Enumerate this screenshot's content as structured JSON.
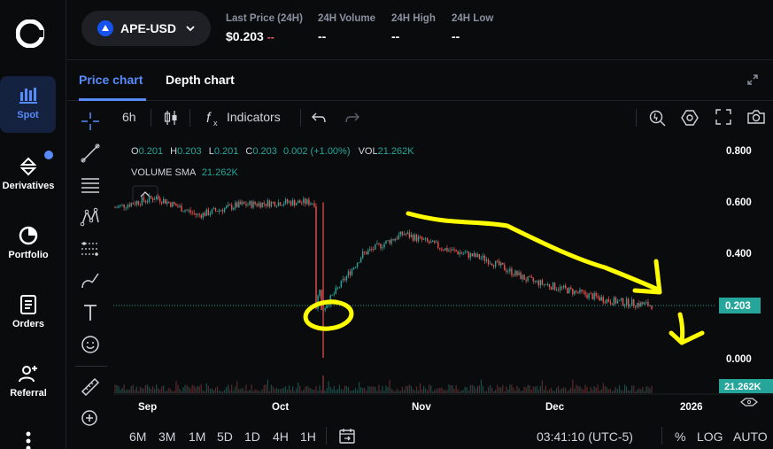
{
  "nav": {
    "items": [
      {
        "label": "Spot",
        "icon": "bar-chart-icon"
      },
      {
        "label": "Derivatives",
        "icon": "derivatives-icon"
      },
      {
        "label": "Portfolio",
        "icon": "pie-chart-icon"
      },
      {
        "label": "Orders",
        "icon": "document-icon"
      },
      {
        "label": "Referral",
        "icon": "add-user-icon"
      }
    ]
  },
  "header": {
    "pair": "APE-USD",
    "last_price_label": "Last Price (24H)",
    "last_price_value": "$0.203",
    "last_price_change": "--",
    "volume_label": "24H Volume",
    "volume_value": "--",
    "high_label": "24H High",
    "high_value": "--",
    "low_label": "24H Low",
    "low_value": "--"
  },
  "tabs": {
    "price": "Price chart",
    "depth": "Depth chart"
  },
  "toolbar": {
    "interval": "6h",
    "indicators": "Indicators"
  },
  "legend": {
    "o_label": "O",
    "o_value": "0.201",
    "h_label": "H",
    "h_value": "0.203",
    "l_label": "L",
    "l_value": "0.201",
    "c_label": "C",
    "c_value": "0.203",
    "change": "0.002 (+1.00%)",
    "vol_label": "VOL",
    "vol_value": "21.262K",
    "sma_label": "VOLUME SMA",
    "sma_value": "21.262K"
  },
  "price_axis": {
    "ticks": [
      "0.800",
      "0.600",
      "0.400",
      "0.000"
    ],
    "current": "0.203",
    "volume_badge": "21.262K"
  },
  "time_axis": {
    "ticks": [
      "Sep",
      "Oct",
      "Nov",
      "Dec",
      "2026"
    ]
  },
  "bottom": {
    "ranges": [
      "6M",
      "3M",
      "1M",
      "5D",
      "1D",
      "4H",
      "1H"
    ],
    "clock": "03:41:10 (UTC-5)",
    "percent": "%",
    "log": "LOG",
    "auto": "AUTO"
  },
  "colors": {
    "accent": "#578bfa",
    "up": "#26a69a",
    "down": "#ef5350",
    "annotation": "#ffff00"
  },
  "chart_data": {
    "type": "candlestick",
    "x": [
      "Sep",
      "Oct",
      "Nov",
      "Dec"
    ],
    "price_approx": [
      0.58,
      0.62,
      0.55,
      0.59,
      0.6,
      0.18,
      0.4,
      0.48,
      0.42,
      0.38,
      0.3,
      0.26,
      0.22,
      0.203
    ],
    "ylim": [
      0.0,
      0.8
    ],
    "current_price": 0.203
  }
}
